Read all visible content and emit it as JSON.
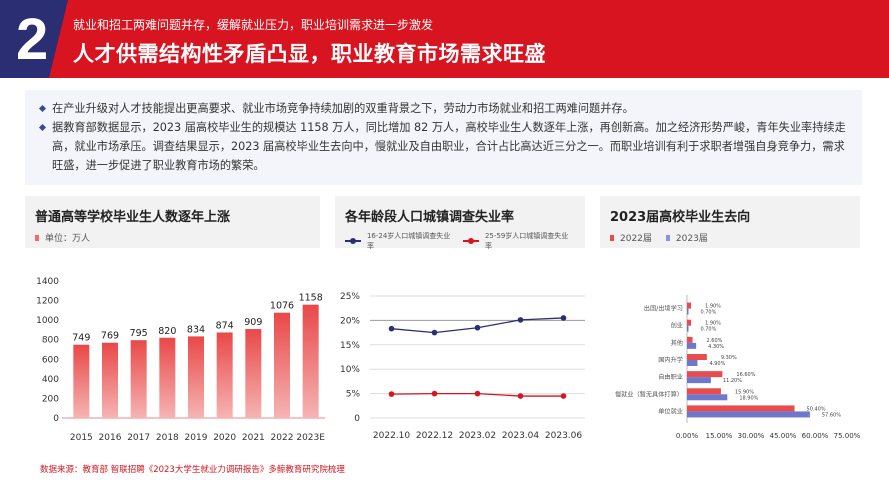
{
  "header": {
    "number": "2",
    "subtitle": "就业和招工两难问题并存，缓解就业压力，职业培训需求进一步激发",
    "title": "人才供需结构性矛盾凸显，职业教育市场需求旺盛"
  },
  "summary": {
    "bullets": [
      "在产业升级对人才技能提出更高要求、就业市场竞争持续加剧的双重背景之下，劳动力市场就业和招工两难问题并存。",
      "据教育部数据显示，2023 届高校毕业生的规模达 1158 万人，同比增加 82 万人，高校毕业生人数逐年上涨，再创新高。加之经济形势严峻，青年失业率持续走高，就业市场承压。调查结果显示，2023 届高校毕业生去向中，慢就业及自由职业，合计占比高达近三分之一。而职业培训有利于求职者增强自身竞争力，需求旺盛，进一步促进了职业教育市场的繁荣。"
    ]
  },
  "colors": {
    "navy": "#2b2e72",
    "red": "#d7141f",
    "bar": "#ee6b6b",
    "blue_series": "#7b86d6"
  },
  "chart_data": [
    {
      "type": "bar",
      "title": "普通高等学校毕业生人数逐年上涨",
      "legend": "单位：万人",
      "categories": [
        "2015",
        "2016",
        "2017",
        "2018",
        "2019",
        "2020",
        "2021",
        "2022",
        "2023E"
      ],
      "values": [
        749,
        769,
        795,
        820,
        834,
        874,
        909,
        1076,
        1158
      ],
      "ylim": [
        0,
        1400
      ],
      "yticks": [
        0,
        200,
        400,
        600,
        800,
        1000,
        1200,
        1400
      ]
    },
    {
      "type": "line",
      "title": "各年龄段人口城镇调查失业率",
      "categories": [
        "2022.10",
        "2022.12",
        "2023.02",
        "2023.04",
        "2023.06"
      ],
      "series": [
        {
          "name": "16-24岁人口城镇调查失业率",
          "color": "#2b2e72",
          "values": [
            18.3,
            17.5,
            18.5,
            20.1,
            20.5
          ]
        },
        {
          "name": "25-59岁人口城镇调查失业率",
          "color": "#d7141f",
          "values": [
            4.9,
            5.0,
            5.0,
            4.5,
            4.5
          ]
        }
      ],
      "ylim": [
        0,
        25
      ],
      "yticks": [
        "0",
        "5%",
        "10%",
        "15%",
        "20%",
        "25%"
      ],
      "grid": true,
      "legend_position": "top"
    },
    {
      "type": "bar",
      "orientation": "horizontal",
      "title": "2023届高校毕业生去向",
      "categories": [
        "出国/出境学习",
        "创业",
        "其他",
        "国内升学",
        "自由职业",
        "慢就业（暂无具体打算）",
        "单位就业"
      ],
      "series": [
        {
          "name": "2022届",
          "color": "#e84c4c",
          "values": [
            1.9,
            1.9,
            2.6,
            9.3,
            16.6,
            15.9,
            50.4
          ],
          "labels": [
            "1.90%",
            "1.90%",
            "2.60%",
            "9.30%",
            "16.60%",
            "15.90%",
            "50.40%"
          ]
        },
        {
          "name": "2023届",
          "color": "#6d78cc",
          "values": [
            0.7,
            0.7,
            4.3,
            4.9,
            11.2,
            18.9,
            57.6
          ],
          "labels": [
            "0.70%",
            "0.70%",
            "4.30%",
            "4.90%",
            "11.20%",
            "18.90%",
            "57.60%"
          ]
        }
      ],
      "xlim": [
        0,
        75
      ],
      "xticks": [
        "0.00%",
        "15.00%",
        "30.00%",
        "45.00%",
        "60.00%",
        "75.00%"
      ]
    }
  ],
  "source": "数据来源：教育部 智联招聘《2023大学生就业力调研报告》多鲸教育研究院梳理"
}
